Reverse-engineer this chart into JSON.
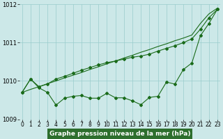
{
  "x": [
    0,
    1,
    2,
    3,
    4,
    5,
    6,
    7,
    8,
    9,
    10,
    11,
    12,
    13,
    14,
    15,
    16,
    17,
    18,
    19,
    20,
    21,
    22,
    23
  ],
  "line_straight": [
    1009.7,
    1009.78,
    1009.85,
    1009.93,
    1010.0,
    1010.08,
    1010.15,
    1010.22,
    1010.3,
    1010.37,
    1010.45,
    1010.52,
    1010.6,
    1010.67,
    1010.75,
    1010.82,
    1010.9,
    1010.97,
    1011.05,
    1011.12,
    1011.2,
    1011.5,
    1011.75,
    1011.9
  ],
  "line_upper": [
    1009.7,
    1010.05,
    1009.85,
    1009.92,
    1010.05,
    1010.12,
    1010.2,
    1010.28,
    1010.35,
    1010.42,
    1010.48,
    1010.52,
    1010.57,
    1010.62,
    1010.65,
    1010.7,
    1010.78,
    1010.85,
    1010.92,
    1011.0,
    1011.1,
    1011.35,
    1011.65,
    1011.87
  ],
  "line_lower": [
    1009.7,
    1010.05,
    1009.82,
    1009.7,
    1009.37,
    1009.55,
    1009.6,
    1009.62,
    1009.55,
    1009.55,
    1009.68,
    1009.56,
    1009.56,
    1009.48,
    1009.38,
    1009.57,
    1009.6,
    1009.97,
    1009.92,
    1010.3,
    1010.47,
    1011.18,
    1011.5,
    1011.87
  ],
  "ylim": [
    1009.0,
    1012.0
  ],
  "yticks": [
    1009,
    1010,
    1011,
    1012
  ],
  "xticks": [
    0,
    1,
    2,
    3,
    4,
    5,
    6,
    7,
    8,
    9,
    10,
    11,
    12,
    13,
    14,
    15,
    16,
    17,
    18,
    19,
    20,
    21,
    22,
    23
  ],
  "line_color": "#1a6b1a",
  "bg_color": "#cce8e8",
  "grid_color": "#99cccc",
  "xlabel": "Graphe pression niveau de la mer (hPa)",
  "xlabel_bg": "#2d6e2d",
  "xlabel_fg": "#ffffff",
  "marker": "D",
  "marker_size": 2.0,
  "line_width": 0.8,
  "tick_fontsize": 5.5,
  "ylabel_fontsize": 6.0,
  "xlabel_fontsize": 6.5
}
